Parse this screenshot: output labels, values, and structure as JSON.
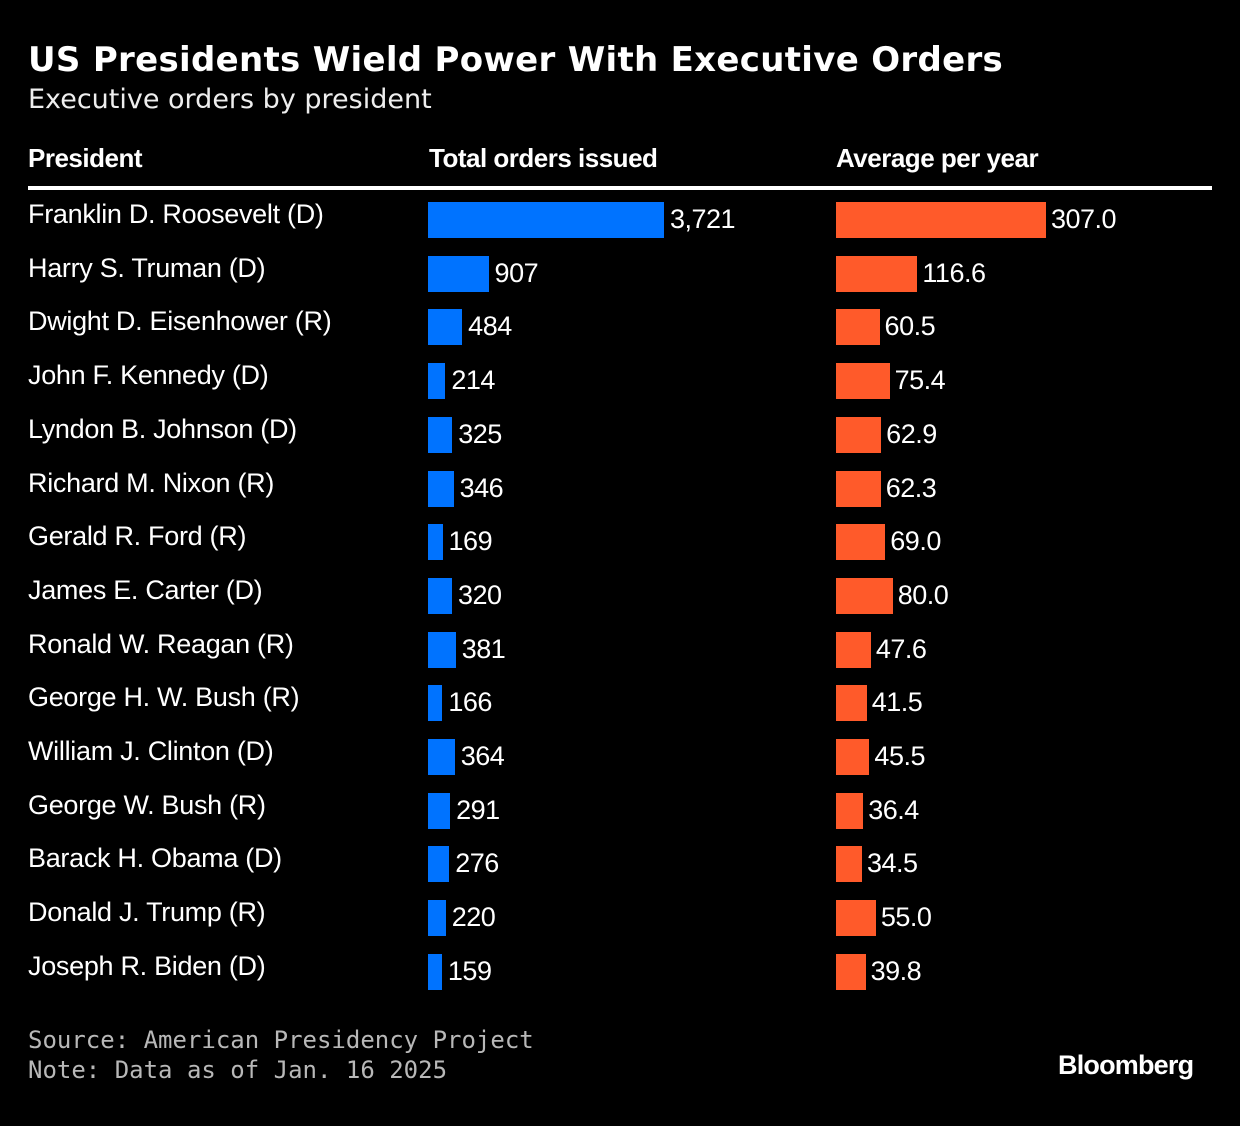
{
  "title": "US Presidents Wield Power With Executive Orders",
  "subtitle": "Executive orders by president",
  "source": "Source: American Presidency Project",
  "note": "Note: Data as of Jan. 16 2025",
  "logo": "Bloomberg",
  "colors": {
    "total": "#0073ff",
    "average": "#ff5a2a",
    "background": "#000000"
  },
  "chart_data": {
    "type": "table",
    "columns": [
      "President",
      "Total orders issued",
      "Average per year"
    ],
    "categories": [
      "Franklin D. Roosevelt (D)",
      "Harry S. Truman (D)",
      "Dwight D. Eisenhower (R)",
      "John F. Kennedy (D)",
      "Lyndon B. Johnson (D)",
      "Richard M. Nixon (R)",
      "Gerald R. Ford (R)",
      "James E. Carter (D)",
      "Ronald W. Reagan (R)",
      "George H. W. Bush (R)",
      "William J. Clinton (D)",
      "George W. Bush (R)",
      "Barack H. Obama (D)",
      "Donald J. Trump (R)",
      "Joseph R. Biden (D)"
    ],
    "series": [
      {
        "name": "Total orders issued",
        "values": [
          3721,
          907,
          484,
          214,
          325,
          346,
          169,
          320,
          381,
          166,
          364,
          291,
          276,
          220,
          159
        ],
        "labels": [
          "3,721",
          "907",
          "484",
          "214",
          "325",
          "346",
          "169",
          "320",
          "381",
          "166",
          "364",
          "291",
          "276",
          "220",
          "159"
        ]
      },
      {
        "name": "Average per year",
        "values": [
          307.0,
          116.6,
          60.5,
          75.4,
          62.9,
          62.3,
          69.0,
          80.0,
          47.6,
          41.5,
          45.5,
          36.4,
          34.5,
          55.0,
          39.8
        ],
        "labels": [
          "307.0",
          "116.6",
          "60.5",
          "75.4",
          "62.9",
          "62.3",
          "69.0",
          "80.0",
          "47.6",
          "41.5",
          "45.5",
          "36.4",
          "34.5",
          "55.0",
          "39.8"
        ]
      }
    ]
  }
}
